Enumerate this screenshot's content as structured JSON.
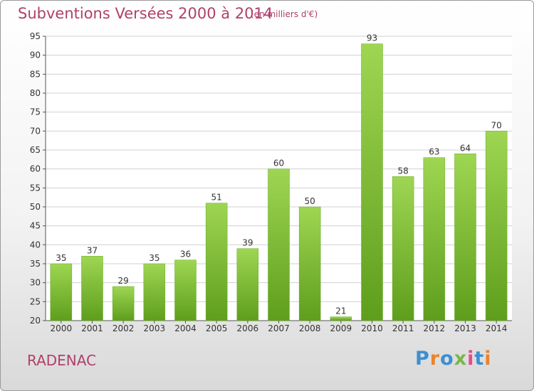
{
  "chart_data": {
    "type": "bar",
    "title": "Subventions Versées 2000 à 2014",
    "subtitle": "(en milliers d'€)",
    "categories": [
      "2000",
      "2001",
      "2002",
      "2003",
      "2004",
      "2005",
      "2006",
      "2007",
      "2008",
      "2009",
      "2010",
      "2011",
      "2012",
      "2013",
      "2014"
    ],
    "values": [
      35,
      37,
      29,
      35,
      36,
      51,
      39,
      60,
      50,
      21,
      93,
      58,
      63,
      64,
      70
    ],
    "ylim": [
      20,
      95
    ],
    "yticks": [
      20,
      25,
      30,
      35,
      40,
      45,
      50,
      55,
      60,
      65,
      70,
      75,
      80,
      85,
      90,
      95
    ],
    "grid": true,
    "bar_color": "#7ec23a",
    "xlabel": "",
    "ylabel": ""
  },
  "footer": {
    "commune": "RADENAC",
    "logo": "Proxiti"
  },
  "colors": {
    "title": "#b0406a",
    "logo_letters": [
      "#3c8fd1",
      "#e8842c",
      "#3c8fd1",
      "#7ab648",
      "#e84a8a",
      "#3c8fd1",
      "#e8842c"
    ]
  }
}
